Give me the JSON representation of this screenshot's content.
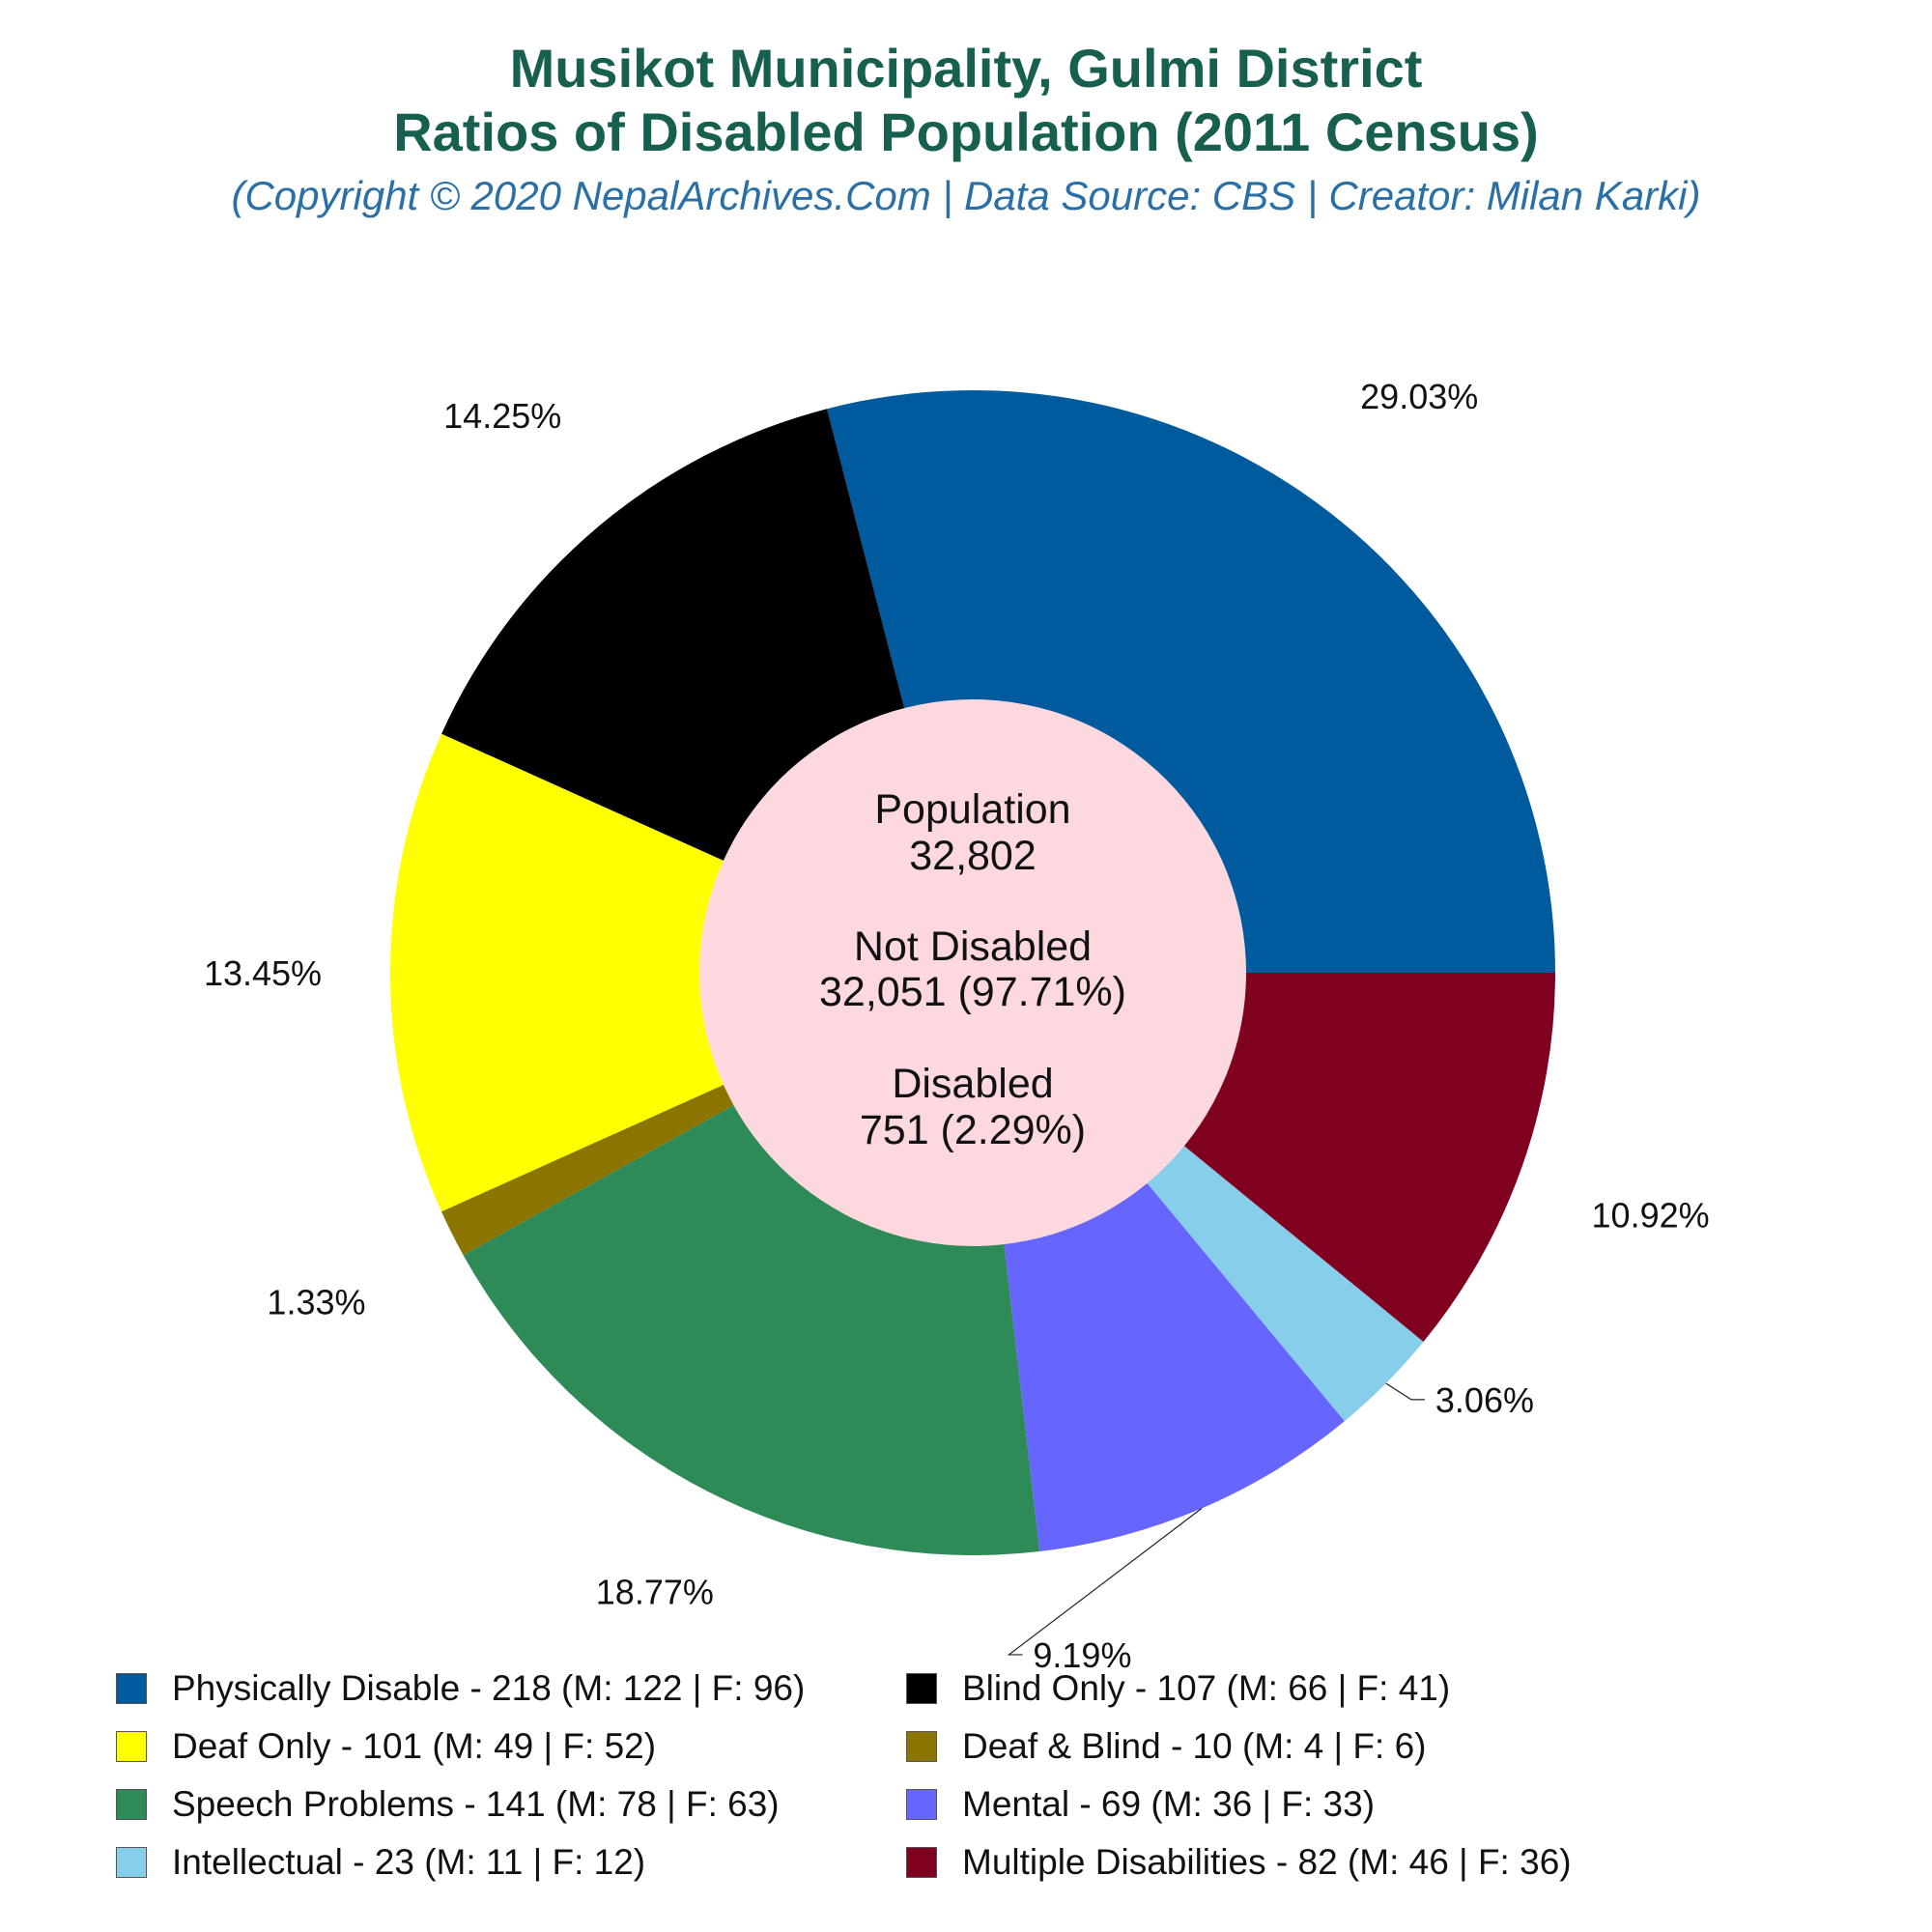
{
  "title_line1": "Musikot Municipality, Gulmi District",
  "title_line2": "Ratios of Disabled Population (2011 Census)",
  "subtitle": "(Copyright © 2020 NepalArchives.Com | Data Source: CBS | Creator: Milan Karki)",
  "center": {
    "population_label": "Population",
    "population_value": "32,802",
    "not_disabled_label": "Not Disabled",
    "not_disabled_value": "32,051 (97.71%)",
    "disabled_label": "Disabled",
    "disabled_value": "751 (2.29%)"
  },
  "chart_data": {
    "type": "pie",
    "donut": true,
    "start_angle": "3 o'clock, counter-clockwise",
    "center_color": "#fdd9df",
    "slices": [
      {
        "label": "Physically Disable - 218 (M: 122 | F: 96)",
        "value": 218,
        "percent_label": "29.03%",
        "color": "#005a9e"
      },
      {
        "label": "Blind Only - 107 (M: 66 | F: 41)",
        "value": 107,
        "percent_label": "14.25%",
        "color": "#000000"
      },
      {
        "label": "Deaf Only - 101 (M: 49 | F: 52)",
        "value": 101,
        "percent_label": "13.45%",
        "color": "#ffff00"
      },
      {
        "label": "Deaf & Blind - 10 (M: 4 | F: 6)",
        "value": 10,
        "percent_label": "1.33%",
        "color": "#8b7500"
      },
      {
        "label": "Speech Problems - 141 (M: 78 | F: 63)",
        "value": 141,
        "percent_label": "18.77%",
        "color": "#2e8b57"
      },
      {
        "label": "Mental - 69 (M: 36 | F: 33)",
        "value": 69,
        "percent_label": "9.19%",
        "color": "#6666ff"
      },
      {
        "label": "Intellectual - 23 (M: 11 | F: 12)",
        "value": 23,
        "percent_label": "3.06%",
        "color": "#87ceeb"
      },
      {
        "label": "Multiple Disabilities - 82 (M: 46 | F: 36)",
        "value": 82,
        "percent_label": "10.92%",
        "color": "#800020"
      }
    ],
    "legend_placement": "bottom, two columns"
  }
}
